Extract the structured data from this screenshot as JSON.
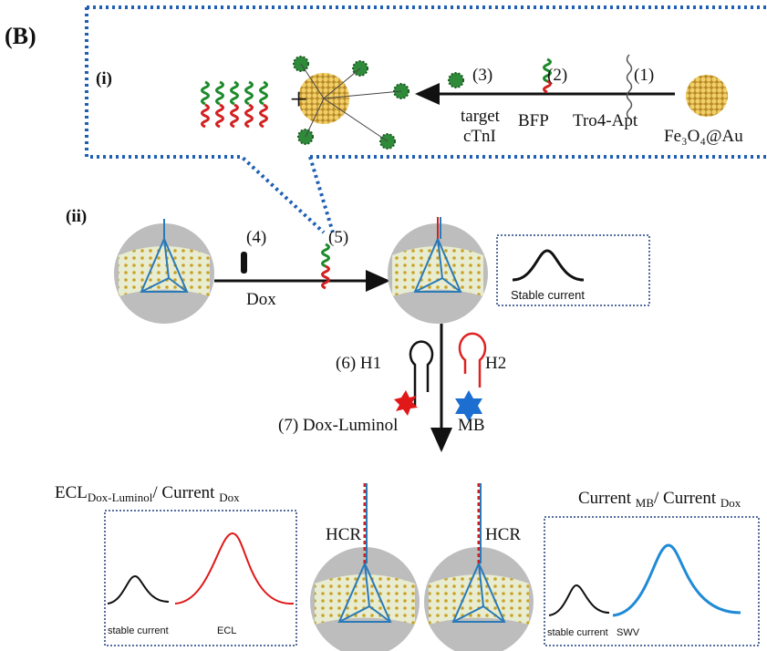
{
  "panel_label": "(B)",
  "part_i": {
    "label": "(i)",
    "step3": "(3)",
    "step2": "(2)",
    "step1": "(1)",
    "target_line1": "target",
    "target_line2": "cTnI",
    "bfp": "BFP",
    "aptamer": "Tro4-Apt",
    "particle": "Fe₃O₄@Au"
  },
  "part_ii": {
    "label": "(ii)",
    "step4": "(4)",
    "dox": "Dox",
    "step5": "(5)",
    "stable_current": "Stable current",
    "step6_h1": "(6) H1",
    "h2": "H2",
    "step7": "(7) Dox-Luminol",
    "mb": "MB",
    "hcr_left": "HCR",
    "hcr_right": "HCR"
  },
  "left_panel": {
    "title": [
      {
        "text": "ECL"
      },
      {
        "text": "Dox-Luminol",
        "sub": true
      },
      {
        "text": "/ Current "
      },
      {
        "text": "Dox",
        "sub": true
      }
    ],
    "black_label": "stable current",
    "red_label": "ECL"
  },
  "right_panel": {
    "title": [
      {
        "text": "Current "
      },
      {
        "text": "MB",
        "sub": true
      },
      {
        "text": "/ Current "
      },
      {
        "text": "Dox",
        "sub": true
      }
    ],
    "black_label": "stable current",
    "blue_label": "SWV"
  }
}
